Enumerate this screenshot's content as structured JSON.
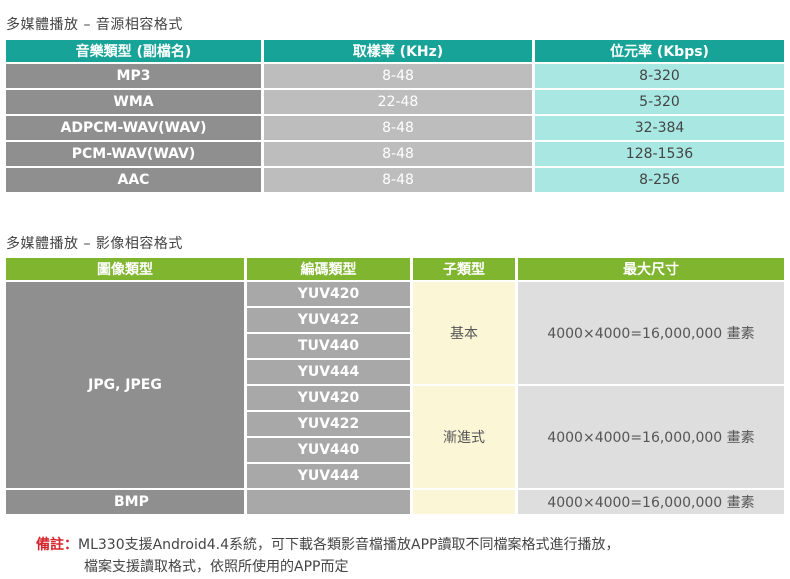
{
  "audio": {
    "title": "多媒體播放 – 音源相容格式",
    "headers": [
      "音樂類型 (副檔名)",
      "取樣率 (KHz)",
      "位元率 (Kbps)"
    ],
    "rows": [
      [
        "MP3",
        "8-48",
        "8-320"
      ],
      [
        "WMA",
        "22-48",
        "5-320"
      ],
      [
        "ADPCM-WAV(WAV)",
        "8-48",
        "32-384"
      ],
      [
        "PCM-WAV(WAV)",
        "8-48",
        "128-1536"
      ],
      [
        "AAC",
        "8-48",
        "8-256"
      ]
    ]
  },
  "image": {
    "title": "多媒體播放 – 影像相容格式",
    "headers": [
      "圖像類型",
      "編碼類型",
      "子類型",
      "最大尺寸"
    ],
    "jpg_type": "JPG, JPEG",
    "codecs": [
      "YUV420",
      "YUV422",
      "TUV440",
      "YUV444",
      "YUV420",
      "YUV422",
      "YUV440",
      "YUV444"
    ],
    "subtype_basic": "基本",
    "subtype_progressive": "漸進式",
    "max_size_basic": "4000×4000=16,000,000 畫素",
    "max_size_progressive": "4000×4000=16,000,000 畫素",
    "bmp_type": "BMP",
    "bmp_max_size": "4000×4000=16,000,000 畫素"
  },
  "note": {
    "label": "備註：",
    "line1": "ML330支援Android4.4系統，可下載各類影音檔播放APP讀取不同檔案格式進行播放，",
    "line2": "檔案支援讀取格式，依照所使用的APP而定"
  },
  "colors": {
    "audio_header": "#17a398",
    "image_header": "#7fb52f",
    "type_col": "#8f8f8f",
    "bitrate_col": "#a9e8e2",
    "note_label": "#d6262c"
  }
}
